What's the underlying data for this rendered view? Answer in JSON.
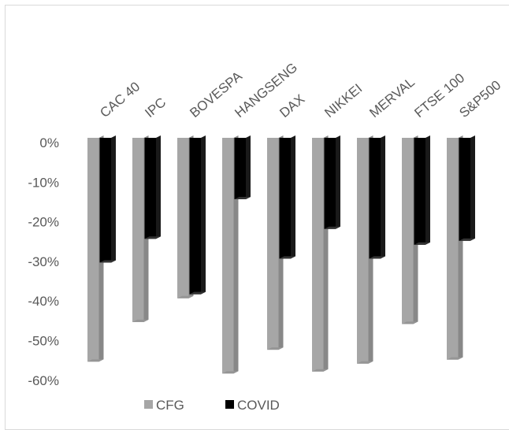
{
  "chart_data": {
    "type": "bar",
    "orientation": "vertical-from-top",
    "categories": [
      "CAC 40",
      "IPC",
      "BOVESPA",
      "HANGSENG",
      "DAX",
      "NIKKEI",
      "MERVAL",
      "FTSE 100",
      "S&P500"
    ],
    "series": [
      {
        "name": "CFG",
        "values": [
          -56.5,
          -46.5,
          -40.5,
          -59.5,
          -53.5,
          -59.0,
          -57.0,
          -47.0,
          -56.0
        ],
        "color": "#a6a6a6"
      },
      {
        "name": "COVID",
        "values": [
          -31.5,
          -25.5,
          -39.5,
          -15.5,
          -30.5,
          -23.0,
          -30.5,
          -27.0,
          -26.0
        ],
        "color": "#000000"
      }
    ],
    "y_ticks": [
      "0%",
      "-10%",
      "-20%",
      "-30%",
      "-40%",
      "-50%",
      "-60%"
    ],
    "ylim": [
      -60,
      0
    ],
    "category_labels_position": "top, rotated",
    "legend_position": "bottom",
    "grid": false,
    "title": "",
    "xlabel": "",
    "ylabel": ""
  }
}
